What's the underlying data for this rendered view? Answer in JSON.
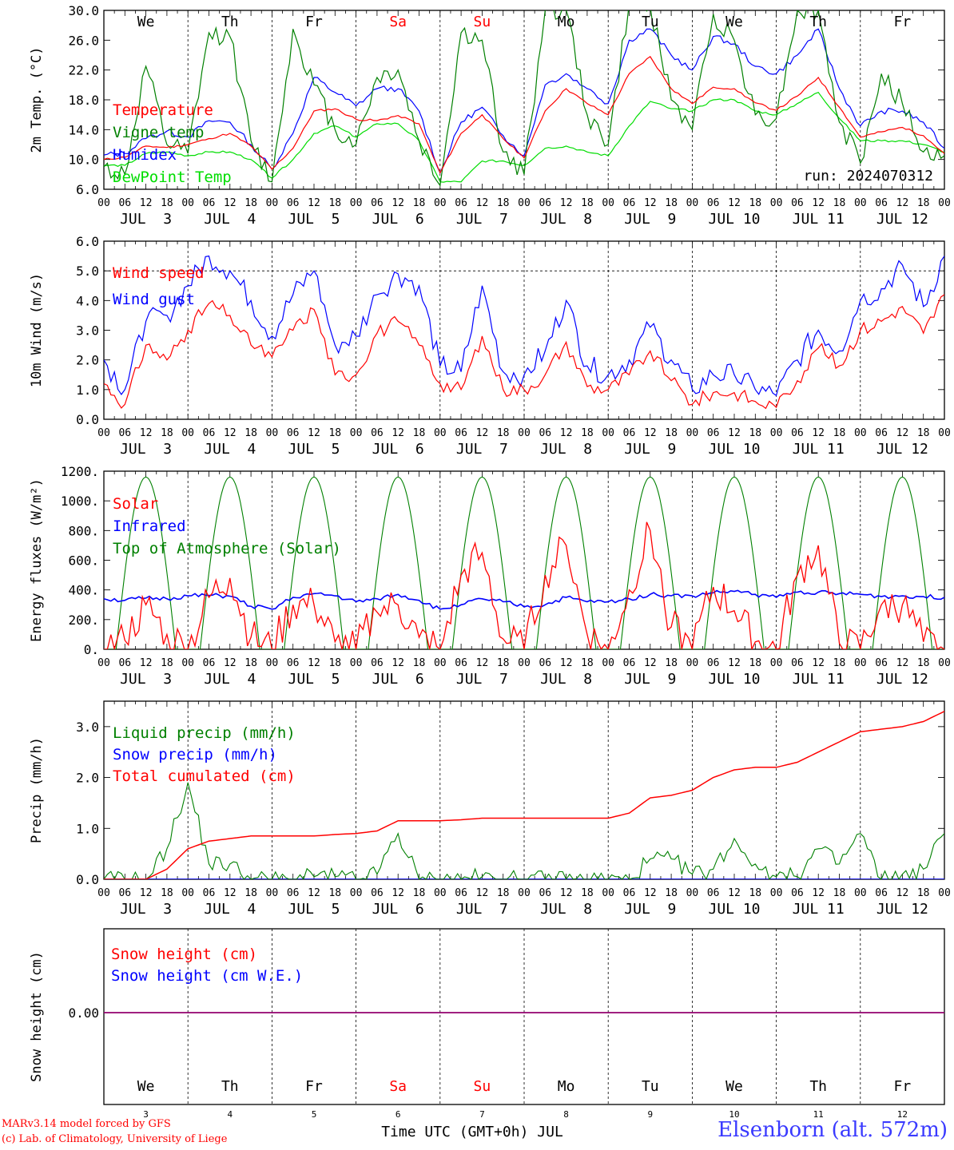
{
  "footer": {
    "credit_line1": "MARv3.14 model forced by GFS",
    "credit_line2": "(c) Lab. of Climatology, University of Liege",
    "station": "Elsenborn (alt. 572m)",
    "xlabel": "Time UTC (GMT+0h) JUL"
  },
  "colors": {
    "red": "#ff0000",
    "darkgreen": "#008000",
    "blue": "#0000ff",
    "lightgreen": "#00dd00",
    "purple": "#800080",
    "grid": "#000000"
  },
  "x_axis": {
    "hour_ticks": [
      "00",
      "06",
      "12",
      "18"
    ],
    "date_labels": [
      "JUL  3",
      "JUL  4",
      "JUL  5",
      "JUL  6",
      "JUL  7",
      "JUL  8",
      "JUL  9",
      "JUL 10",
      "JUL 11",
      "JUL 12"
    ],
    "weekdays": [
      "We",
      "Th",
      "Fr",
      "Sa",
      "Su",
      "Mo",
      "Tu",
      "We",
      "Th",
      "Fr"
    ],
    "weekday_colors": [
      "#000000",
      "#000000",
      "#000000",
      "#ff0000",
      "#ff0000",
      "#000000",
      "#000000",
      "#000000",
      "#000000",
      "#000000"
    ],
    "day_numbers": [
      "3",
      "4",
      "5",
      "6",
      "7",
      "8",
      "9",
      "10",
      "11",
      "12"
    ]
  },
  "chart_data": [
    {
      "type": "line",
      "ylabel": "2m Temp. (°C)",
      "ylim": [
        6,
        30
      ],
      "yticks": [
        "6.0",
        "10.0",
        "14.0",
        "18.0",
        "22.0",
        "26.0",
        "30.0"
      ],
      "annotation": "run: 2024070312",
      "x_days": [
        3.0,
        3.25,
        3.5,
        3.75,
        4.0,
        4.25,
        4.5,
        4.75,
        5.0,
        5.25,
        5.5,
        5.75,
        6.0,
        6.25,
        6.5,
        6.75,
        7.0,
        7.25,
        7.5,
        7.75,
        8.0,
        8.25,
        8.5,
        8.75,
        9.0,
        9.25,
        9.5,
        9.75,
        10.0,
        10.25,
        10.5,
        10.75,
        11.0,
        11.25,
        11.5,
        11.75,
        12.0,
        12.25,
        12.5,
        12.75,
        13.0
      ],
      "series": [
        {
          "name": "Temperature",
          "color": "#ff0000",
          "values": [
            10.0,
            10.3,
            11.8,
            11.6,
            12.0,
            12.8,
            13.5,
            11.8,
            8.7,
            11.5,
            16.5,
            16.8,
            15.4,
            15.2,
            15.9,
            14.8,
            8.2,
            13.5,
            16.0,
            12.8,
            10.2,
            16.5,
            19.5,
            17.5,
            16.0,
            21.5,
            23.8,
            19.5,
            17.5,
            19.7,
            19.5,
            17.6,
            16.6,
            18.5,
            21.0,
            17.0,
            13.0,
            13.7,
            14.3,
            13.2,
            10.8
          ]
        },
        {
          "name": "Vigne temp",
          "color": "#008000",
          "values": [
            9.0,
            8.0,
            22.5,
            12.0,
            10.8,
            27.0,
            26.5,
            12.5,
            7.0,
            27.5,
            20.0,
            14.0,
            12.0,
            21.0,
            22.0,
            12.5,
            6.5,
            27.0,
            26.0,
            11.0,
            8.0,
            30.0,
            30.0,
            16.0,
            12.0,
            31.0,
            30.5,
            18.0,
            14.0,
            29.5,
            26.0,
            16.0,
            15.5,
            30.0,
            30.0,
            15.0,
            9.5,
            21.5,
            17.5,
            11.0,
            10.5
          ]
        },
        {
          "name": "Humidex",
          "color": "#0000ff",
          "values": [
            10.6,
            10.8,
            12.8,
            13.8,
            13.0,
            15.2,
            15.0,
            12.0,
            8.7,
            13.5,
            21.0,
            19.0,
            17.2,
            19.5,
            19.5,
            16.5,
            8.2,
            15.0,
            17.0,
            13.2,
            10.5,
            20.0,
            21.5,
            19.5,
            17.5,
            26.0,
            27.5,
            24.0,
            22.0,
            26.5,
            25.5,
            22.5,
            21.5,
            24.0,
            27.5,
            19.5,
            14.5,
            16.5,
            16.5,
            15.0,
            11.5
          ]
        },
        {
          "name": "DewPoint Temp",
          "color": "#00dd00",
          "values": [
            9.2,
            9.2,
            10.8,
            11.0,
            10.5,
            11.0,
            11.0,
            10.0,
            7.5,
            10.0,
            13.5,
            14.5,
            13.0,
            14.8,
            14.8,
            12.5,
            7.0,
            7.0,
            9.8,
            9.8,
            9.2,
            11.5,
            11.8,
            11.0,
            10.5,
            14.5,
            17.8,
            16.8,
            16.5,
            18.0,
            18.0,
            16.5,
            16.0,
            17.5,
            19.0,
            15.5,
            12.5,
            12.5,
            12.5,
            12.0,
            11.0
          ]
        }
      ]
    },
    {
      "type": "line",
      "ylabel": "10m Wind (m/s)",
      "ylim": [
        0,
        6
      ],
      "yticks": [
        "0.0",
        "1.0",
        "2.0",
        "3.0",
        "4.0",
        "5.0",
        "6.0"
      ],
      "reference_line": 5.0,
      "x_days": [
        3.0,
        3.25,
        3.5,
        3.75,
        4.0,
        4.25,
        4.5,
        4.75,
        5.0,
        5.25,
        5.5,
        5.75,
        6.0,
        6.25,
        6.5,
        6.75,
        7.0,
        7.25,
        7.5,
        7.75,
        8.0,
        8.25,
        8.5,
        8.75,
        9.0,
        9.25,
        9.5,
        9.75,
        10.0,
        10.25,
        10.5,
        10.75,
        11.0,
        11.25,
        11.5,
        11.75,
        12.0,
        12.25,
        12.5,
        12.75,
        13.0
      ],
      "series": [
        {
          "name": "Wind speed",
          "color": "#ff0000",
          "values": [
            1.2,
            0.5,
            2.5,
            2.0,
            3.0,
            3.9,
            3.5,
            2.5,
            2.1,
            3.0,
            3.7,
            1.5,
            1.5,
            2.9,
            3.3,
            2.5,
            1.2,
            1.0,
            2.8,
            1.0,
            1.0,
            1.5,
            2.6,
            1.1,
            1.0,
            1.5,
            2.3,
            1.3,
            0.5,
            0.9,
            0.9,
            0.6,
            0.4,
            1.3,
            2.4,
            1.8,
            3.0,
            3.3,
            3.8,
            2.9,
            4.2
          ]
        },
        {
          "name": "Wind gust",
          "color": "#0000ff",
          "values": [
            2.0,
            1.0,
            3.3,
            3.5,
            4.5,
            5.5,
            5.0,
            4.0,
            2.8,
            4.2,
            5.0,
            2.5,
            2.8,
            4.2,
            4.9,
            4.5,
            1.8,
            1.6,
            4.5,
            1.6,
            1.5,
            2.3,
            4.0,
            1.8,
            1.5,
            2.0,
            3.1,
            2.0,
            1.0,
            1.5,
            1.5,
            1.0,
            0.8,
            2.0,
            3.0,
            2.3,
            4.0,
            4.4,
            5.2,
            3.8,
            5.5
          ]
        }
      ]
    },
    {
      "type": "line",
      "ylabel": "Energy fluxes (W/m²)",
      "ylim": [
        0,
        1200
      ],
      "yticks": [
        "0.",
        "200.",
        "400.",
        "600.",
        "800.",
        "1000.",
        "1200."
      ],
      "x_days": [
        3.0,
        3.25,
        3.5,
        3.75,
        4.0,
        4.25,
        4.5,
        4.75,
        5.0,
        5.25,
        5.5,
        5.75,
        6.0,
        6.25,
        6.5,
        6.75,
        7.0,
        7.25,
        7.5,
        7.75,
        8.0,
        8.25,
        8.5,
        8.75,
        9.0,
        9.25,
        9.5,
        9.75,
        10.0,
        10.25,
        10.5,
        10.75,
        11.0,
        11.25,
        11.5,
        11.75,
        12.0,
        12.25,
        12.5,
        12.75,
        13.0
      ],
      "series": [
        {
          "name": "Solar",
          "color": "#ff0000",
          "values": [
            0,
            60,
            300,
            100,
            0,
            350,
            480,
            80,
            0,
            300,
            300,
            50,
            0,
            250,
            300,
            80,
            0,
            500,
            650,
            70,
            0,
            500,
            700,
            100,
            0,
            400,
            800,
            150,
            0,
            420,
            260,
            50,
            0,
            500,
            700,
            40,
            0,
            300,
            300,
            50,
            0
          ]
        },
        {
          "name": "Infrared",
          "color": "#0000ff",
          "values": [
            340,
            330,
            345,
            340,
            360,
            362,
            358,
            290,
            270,
            350,
            375,
            360,
            320,
            340,
            370,
            330,
            270,
            300,
            340,
            320,
            285,
            300,
            350,
            320,
            320,
            340,
            370,
            360,
            360,
            380,
            390,
            370,
            350,
            385,
            385,
            375,
            370,
            355,
            360,
            355,
            350
          ]
        },
        {
          "name": "Top of Atmosphere (Solar)",
          "color": "#008000",
          "peak": 1160,
          "daylight_start_hour": 3.5,
          "daylight_end_hour": 20.5
        }
      ]
    },
    {
      "type": "line",
      "ylabel": "Precip (mm/h)",
      "ylim": [
        0,
        3.5
      ],
      "yticks": [
        "0.0",
        "1.0",
        "2.0",
        "3.0"
      ],
      "x_days": [
        3.0,
        3.25,
        3.5,
        3.75,
        4.0,
        4.25,
        4.5,
        4.75,
        5.0,
        5.25,
        5.5,
        5.75,
        6.0,
        6.25,
        6.5,
        6.75,
        7.0,
        7.25,
        7.5,
        7.75,
        8.0,
        8.25,
        8.5,
        8.75,
        9.0,
        9.25,
        9.5,
        9.75,
        10.0,
        10.25,
        10.5,
        10.75,
        11.0,
        11.25,
        11.5,
        11.75,
        12.0,
        12.25,
        12.5,
        12.75,
        13.0
      ],
      "series": [
        {
          "name": "Liquid precip (mm/h)",
          "color": "#008000",
          "values": [
            0,
            0,
            0,
            0.6,
            1.9,
            0.3,
            0.3,
            0.0,
            0.0,
            0.0,
            0.05,
            0.05,
            0.0,
            0.1,
            0.9,
            0.0,
            0.0,
            0.0,
            0.05,
            0.0,
            0.0,
            0.0,
            0.0,
            0.0,
            0.0,
            0.0,
            0.4,
            0.4,
            0.1,
            0.2,
            0.8,
            0.3,
            0.05,
            0.05,
            0.6,
            0.3,
            0.9,
            0.0,
            0.1,
            0.2,
            0.9
          ]
        },
        {
          "name": "Snow precip (mm/h)",
          "color": "#0000ff",
          "values": [
            0,
            0,
            0,
            0,
            0,
            0,
            0,
            0,
            0,
            0,
            0,
            0,
            0,
            0,
            0,
            0,
            0,
            0,
            0,
            0,
            0,
            0,
            0,
            0,
            0,
            0,
            0,
            0,
            0,
            0,
            0,
            0,
            0,
            0,
            0,
            0,
            0,
            0,
            0,
            0,
            0
          ]
        },
        {
          "name": "Total cumulated (cm)",
          "color": "#ff0000",
          "values": [
            0,
            0,
            0,
            0.2,
            0.6,
            0.75,
            0.8,
            0.85,
            0.85,
            0.85,
            0.85,
            0.88,
            0.9,
            0.95,
            1.15,
            1.15,
            1.15,
            1.17,
            1.2,
            1.2,
            1.2,
            1.2,
            1.2,
            1.2,
            1.2,
            1.3,
            1.6,
            1.65,
            1.75,
            2.0,
            2.15,
            2.2,
            2.2,
            2.3,
            2.5,
            2.7,
            2.9,
            2.95,
            3.0,
            3.1,
            3.3
          ]
        }
      ]
    },
    {
      "type": "line",
      "ylabel": "Snow height (cm)",
      "yticks": [
        "0.00"
      ],
      "series": [
        {
          "name": "Snow height (cm)",
          "color": "#ff0000",
          "values": [
            0.0
          ]
        },
        {
          "name": "Snow height (cm W.E.)",
          "color": "#0000ff",
          "values": [
            0.0
          ]
        }
      ]
    }
  ]
}
